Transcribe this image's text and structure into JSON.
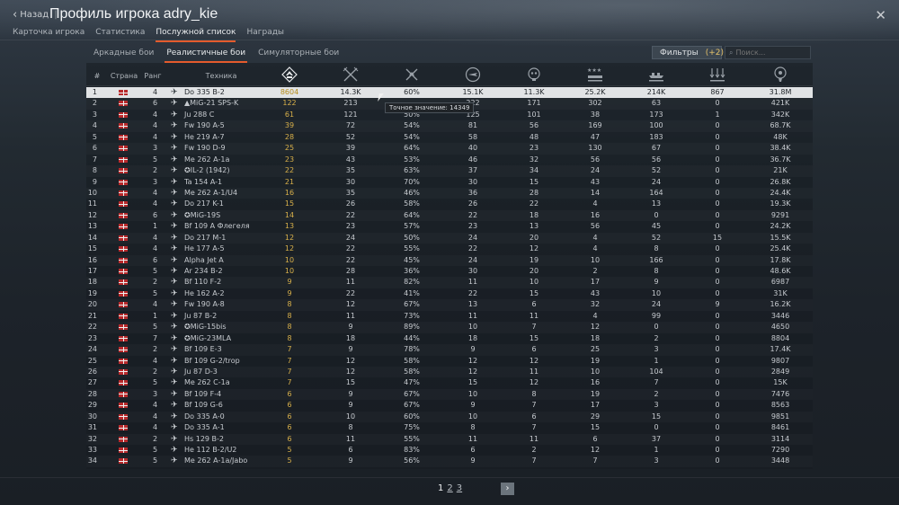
{
  "header": {
    "back_label": "Назад",
    "title": "Профиль игрока adry_kie",
    "tabs": [
      "Карточка игрока",
      "Статистика",
      "Послужной список",
      "Награды"
    ],
    "active_tab": 2
  },
  "subtabs": [
    "Аркадные бои",
    "Реалистичные бои",
    "Симуляторные бои"
  ],
  "active_subtab": 1,
  "filters": {
    "label": "Фильтры",
    "count": "(+2)"
  },
  "search": {
    "placeholder": "Поиск..."
  },
  "columns": {
    "num": "#",
    "country": "Страна",
    "rank": "Ранг",
    "vehicle": "Техника",
    "icons": [
      "respawns-icon",
      "air-kills-icon",
      "win-rate-icon",
      "flights-icon",
      "deaths-icon",
      "ground-kills-icon",
      "naval-kills-icon",
      "targets-icon",
      "score-icon"
    ]
  },
  "tooltip": "Точное значение: 14349",
  "rows": [
    {
      "n": "1",
      "rank": "4",
      "name": "Do 335 B-2",
      "v": [
        "8604",
        "14.3K",
        "60%",
        "15.1K",
        "11.3K",
        "25.2K",
        "214K",
        "867",
        "31.8M"
      ]
    },
    {
      "n": "2",
      "rank": "6",
      "name": "▲MiG-21 SPS-K",
      "v": [
        "122",
        "213",
        "",
        "222",
        "171",
        "302",
        "63",
        "0",
        "421K"
      ]
    },
    {
      "n": "3",
      "rank": "4",
      "name": "Ju 288 C",
      "v": [
        "61",
        "121",
        "50%",
        "125",
        "101",
        "38",
        "173",
        "1",
        "342K"
      ]
    },
    {
      "n": "4",
      "rank": "4",
      "name": "Fw 190 A-5",
      "v": [
        "39",
        "72",
        "54%",
        "81",
        "56",
        "169",
        "100",
        "0",
        "68.7K"
      ]
    },
    {
      "n": "5",
      "rank": "4",
      "name": "He 219 A-7",
      "v": [
        "28",
        "52",
        "54%",
        "58",
        "48",
        "47",
        "183",
        "0",
        "48K"
      ]
    },
    {
      "n": "6",
      "rank": "3",
      "name": "Fw 190 D-9",
      "v": [
        "25",
        "39",
        "64%",
        "40",
        "23",
        "130",
        "67",
        "0",
        "38.4K"
      ]
    },
    {
      "n": "7",
      "rank": "5",
      "name": "Me 262 A-1a",
      "v": [
        "23",
        "43",
        "53%",
        "46",
        "32",
        "56",
        "56",
        "0",
        "36.7K"
      ]
    },
    {
      "n": "8",
      "rank": "2",
      "name": "✪IL-2 (1942)",
      "v": [
        "22",
        "35",
        "63%",
        "37",
        "34",
        "24",
        "52",
        "0",
        "21K"
      ]
    },
    {
      "n": "9",
      "rank": "3",
      "name": "Ta 154 A-1",
      "v": [
        "21",
        "30",
        "70%",
        "30",
        "15",
        "43",
        "24",
        "0",
        "26.8K"
      ]
    },
    {
      "n": "10",
      "rank": "4",
      "name": "Me 262 A-1/U4",
      "v": [
        "16",
        "35",
        "46%",
        "36",
        "28",
        "14",
        "164",
        "0",
        "24.4K"
      ]
    },
    {
      "n": "11",
      "rank": "4",
      "name": "Do 217 K-1",
      "v": [
        "15",
        "26",
        "58%",
        "26",
        "22",
        "4",
        "13",
        "0",
        "19.3K"
      ]
    },
    {
      "n": "12",
      "rank": "6",
      "name": "✪MiG-19S",
      "v": [
        "14",
        "22",
        "64%",
        "22",
        "18",
        "16",
        "0",
        "0",
        "9291"
      ]
    },
    {
      "n": "13",
      "rank": "1",
      "name": "Bf 109 A Флегеля",
      "v": [
        "13",
        "23",
        "57%",
        "23",
        "13",
        "56",
        "45",
        "0",
        "24.2K"
      ]
    },
    {
      "n": "14",
      "rank": "4",
      "name": "Do 217 M-1",
      "v": [
        "12",
        "24",
        "50%",
        "24",
        "20",
        "4",
        "52",
        "15",
        "15.5K"
      ]
    },
    {
      "n": "15",
      "rank": "4",
      "name": "He 177 A-5",
      "v": [
        "12",
        "22",
        "55%",
        "22",
        "12",
        "4",
        "8",
        "0",
        "25.4K"
      ]
    },
    {
      "n": "16",
      "rank": "6",
      "name": "Alpha Jet A",
      "v": [
        "10",
        "22",
        "45%",
        "24",
        "19",
        "10",
        "166",
        "0",
        "17.8K"
      ]
    },
    {
      "n": "17",
      "rank": "5",
      "name": "Ar 234 B-2",
      "v": [
        "10",
        "28",
        "36%",
        "30",
        "20",
        "2",
        "8",
        "0",
        "48.6K"
      ]
    },
    {
      "n": "18",
      "rank": "2",
      "name": "Bf 110 F-2",
      "v": [
        "9",
        "11",
        "82%",
        "11",
        "10",
        "17",
        "9",
        "0",
        "6987"
      ]
    },
    {
      "n": "19",
      "rank": "5",
      "name": "He 162 A-2",
      "v": [
        "9",
        "22",
        "41%",
        "22",
        "15",
        "43",
        "10",
        "0",
        "31K"
      ]
    },
    {
      "n": "20",
      "rank": "4",
      "name": "Fw 190 A-8",
      "v": [
        "8",
        "12",
        "67%",
        "13",
        "6",
        "32",
        "24",
        "9",
        "16.2K"
      ]
    },
    {
      "n": "21",
      "rank": "1",
      "name": "Ju 87 B-2",
      "v": [
        "8",
        "11",
        "73%",
        "11",
        "11",
        "4",
        "99",
        "0",
        "3446"
      ]
    },
    {
      "n": "22",
      "rank": "5",
      "name": "✪MiG-15bis",
      "v": [
        "8",
        "9",
        "89%",
        "10",
        "7",
        "12",
        "0",
        "0",
        "4650"
      ]
    },
    {
      "n": "23",
      "rank": "7",
      "name": "✪MiG-23MLA",
      "v": [
        "8",
        "18",
        "44%",
        "18",
        "15",
        "18",
        "2",
        "0",
        "8804"
      ]
    },
    {
      "n": "24",
      "rank": "2",
      "name": "Bf 109 E-3",
      "v": [
        "7",
        "9",
        "78%",
        "9",
        "6",
        "25",
        "3",
        "0",
        "17.4K"
      ]
    },
    {
      "n": "25",
      "rank": "4",
      "name": "Bf 109 G-2/trop",
      "v": [
        "7",
        "12",
        "58%",
        "12",
        "12",
        "19",
        "1",
        "0",
        "9807"
      ]
    },
    {
      "n": "26",
      "rank": "2",
      "name": "Ju 87 D-3",
      "v": [
        "7",
        "12",
        "58%",
        "12",
        "11",
        "10",
        "104",
        "0",
        "2849"
      ]
    },
    {
      "n": "27",
      "rank": "5",
      "name": "Me 262 C-1a",
      "v": [
        "7",
        "15",
        "47%",
        "15",
        "12",
        "16",
        "7",
        "0",
        "15K"
      ]
    },
    {
      "n": "28",
      "rank": "3",
      "name": "Bf 109 F-4",
      "v": [
        "6",
        "9",
        "67%",
        "10",
        "8",
        "19",
        "2",
        "0",
        "7476"
      ]
    },
    {
      "n": "29",
      "rank": "4",
      "name": "Bf 109 G-6",
      "v": [
        "6",
        "9",
        "67%",
        "9",
        "7",
        "17",
        "3",
        "0",
        "8563"
      ]
    },
    {
      "n": "30",
      "rank": "4",
      "name": "Do 335 A-0",
      "v": [
        "6",
        "10",
        "60%",
        "10",
        "6",
        "29",
        "15",
        "0",
        "9851"
      ]
    },
    {
      "n": "31",
      "rank": "4",
      "name": "Do 335 A-1",
      "v": [
        "6",
        "8",
        "75%",
        "8",
        "7",
        "15",
        "0",
        "0",
        "8461"
      ]
    },
    {
      "n": "32",
      "rank": "2",
      "name": "Hs 129 B-2",
      "v": [
        "6",
        "11",
        "55%",
        "11",
        "11",
        "6",
        "37",
        "0",
        "3114"
      ]
    },
    {
      "n": "33",
      "rank": "5",
      "name": "He 112 B-2/U2",
      "v": [
        "5",
        "6",
        "83%",
        "6",
        "2",
        "12",
        "1",
        "0",
        "7290"
      ]
    },
    {
      "n": "34",
      "rank": "5",
      "name": "Me 262 A-1a/Jabo",
      "v": [
        "5",
        "9",
        "56%",
        "9",
        "7",
        "7",
        "3",
        "0",
        "3448"
      ]
    }
  ],
  "pagination": {
    "pages": [
      "1",
      "2",
      "3"
    ],
    "current": "1",
    "next_icon": "chevron-right-icon"
  }
}
